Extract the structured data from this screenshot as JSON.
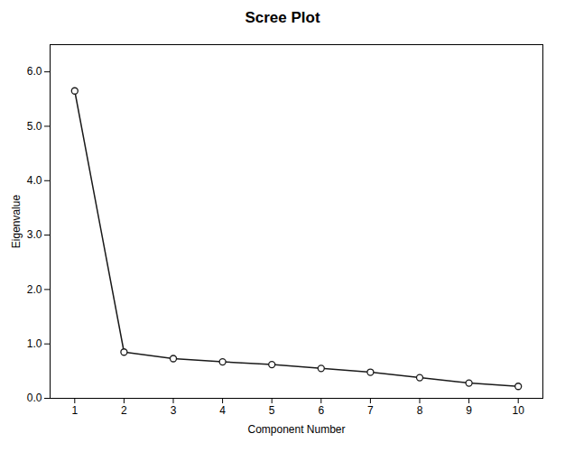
{
  "chart_data": {
    "type": "line",
    "title": "Scree Plot",
    "xlabel": "Component Number",
    "ylabel": "Eigenvalue",
    "x": [
      1,
      2,
      3,
      4,
      5,
      6,
      7,
      8,
      9,
      10
    ],
    "values": [
      5.65,
      0.85,
      0.73,
      0.67,
      0.62,
      0.55,
      0.48,
      0.38,
      0.28,
      0.22
    ],
    "xlim": [
      0.5,
      10.5
    ],
    "ylim": [
      0.0,
      6.5
    ],
    "xticks": [
      1,
      2,
      3,
      4,
      5,
      6,
      7,
      8,
      9,
      10
    ],
    "yticks": [
      0,
      1,
      2,
      3,
      4,
      5,
      6
    ],
    "color": "#1a1a1a",
    "marker": "circle",
    "grid": false
  }
}
